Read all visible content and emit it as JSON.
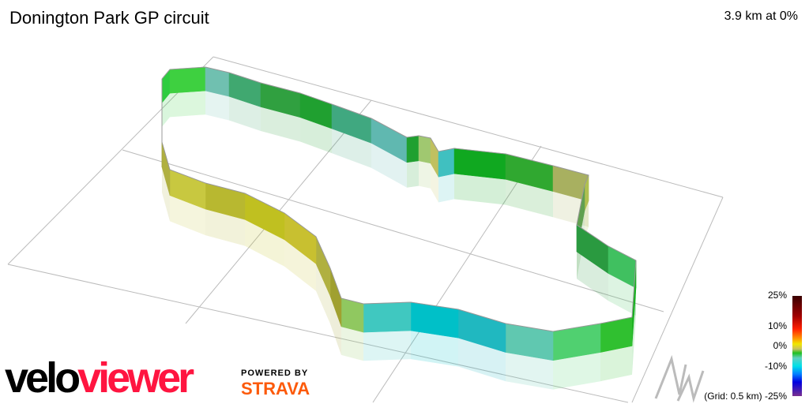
{
  "header": {
    "title": "Donington Park GP circuit",
    "summary": "3.9 km at 0%"
  },
  "legend": {
    "labels": [
      "25%",
      "10%",
      "0%",
      "-10%",
      "-25%"
    ],
    "grid_note": "(Grid: 0.5 km)"
  },
  "branding": {
    "logo_part1": "velo",
    "logo_part2": "viewer",
    "powered_by": "POWERED BY",
    "strava": "STRAVA"
  },
  "colors": {
    "brand_red": "#ff1540",
    "strava_orange": "#fc5a0a",
    "grid": "#bbbbbb"
  },
  "north_indicator": "N"
}
